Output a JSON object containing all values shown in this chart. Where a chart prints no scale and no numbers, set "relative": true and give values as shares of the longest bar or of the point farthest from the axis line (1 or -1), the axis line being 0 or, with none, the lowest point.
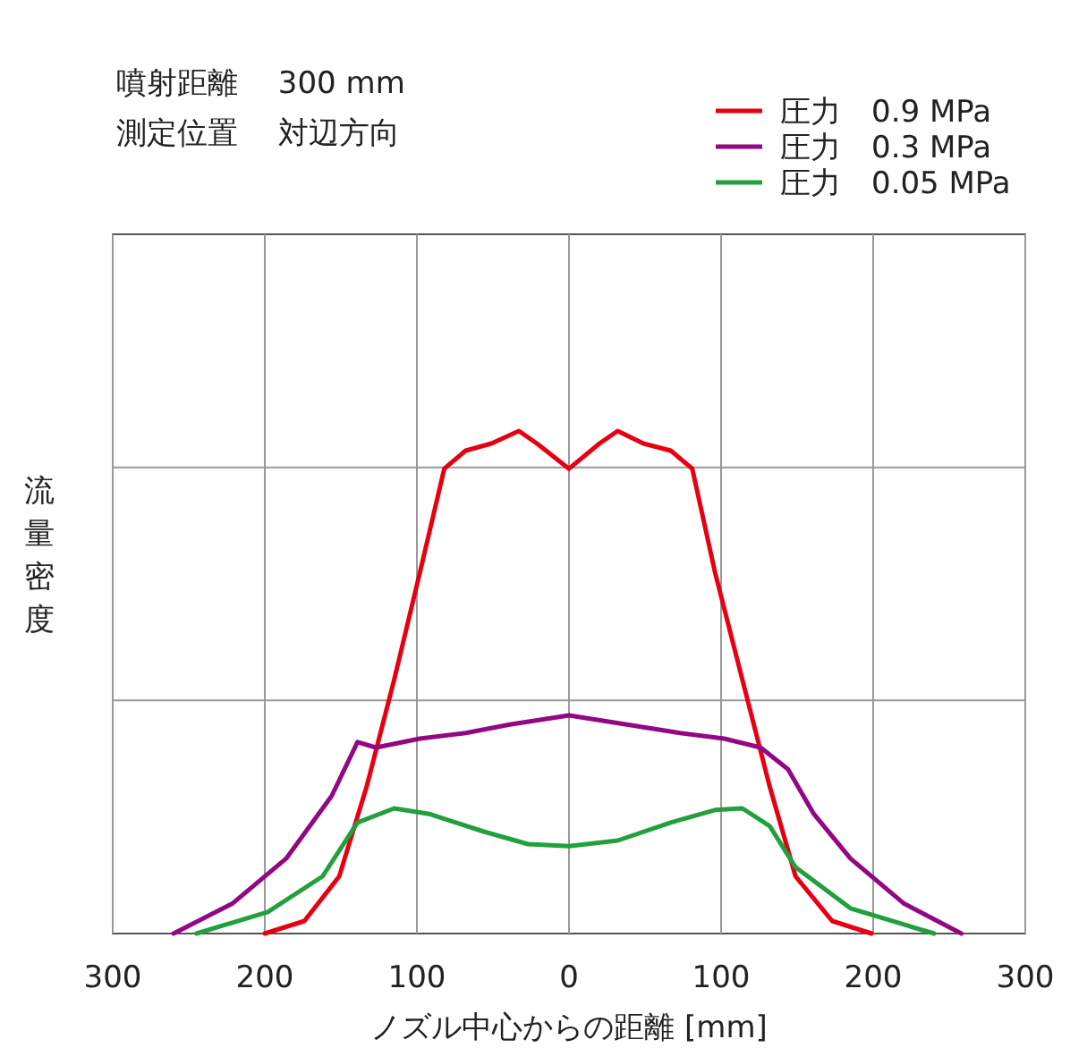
{
  "chart_data": {
    "type": "line",
    "relative": true,
    "xlabel": "ノズル中心からの距離 [mm]",
    "ylabel": "流量密度",
    "annotations": [
      "噴射距離　 300 mm",
      "測定位置　 対辺方向"
    ],
    "xlim": [
      -300,
      300
    ],
    "xticks": [
      {
        "value": -300,
        "label": "300"
      },
      {
        "value": -200,
        "label": "200"
      },
      {
        "value": -100,
        "label": "100"
      },
      0,
      100,
      200,
      300
    ],
    "grid": true,
    "legend": "top right",
    "series": [
      {
        "name": "圧力　0.9 MPa",
        "color": "#e60012",
        "x": [
          -200,
          -174,
          -151,
          -133,
          -115,
          -98,
          -82,
          -68,
          -51,
          -33,
          -21,
          0,
          20,
          32,
          49,
          67,
          81,
          96,
          114,
          132,
          149,
          173,
          199
        ],
        "values": [
          0,
          0.025,
          0.114,
          0.292,
          0.505,
          0.719,
          0.925,
          0.961,
          0.975,
          1,
          0.975,
          0.925,
          0.975,
          1,
          0.975,
          0.961,
          0.925,
          0.719,
          0.505,
          0.292,
          0.114,
          0.025,
          0
        ]
      },
      {
        "name": "圧力　0.3 MPa",
        "color": "#920783",
        "x": [
          -260,
          -221,
          -186,
          -156,
          -139,
          -127,
          -98,
          -68,
          -39,
          0,
          38,
          73,
          102,
          126,
          144,
          161,
          185,
          220,
          258
        ],
        "values": [
          0,
          0.06,
          0.149,
          0.274,
          0.381,
          0.37,
          0.388,
          0.399,
          0.416,
          0.434,
          0.416,
          0.399,
          0.388,
          0.37,
          0.327,
          0.238,
          0.149,
          0.06,
          0
        ]
      },
      {
        "name": "圧力　0.05 MPa",
        "color": "#22a03c",
        "x": [
          -245,
          -198,
          -162,
          -139,
          -115,
          -92,
          -56,
          -27,
          0,
          32,
          67,
          96,
          114,
          132,
          149,
          185,
          240
        ],
        "values": [
          0,
          0.043,
          0.114,
          0.221,
          0.249,
          0.238,
          0.203,
          0.178,
          0.174,
          0.185,
          0.221,
          0.246,
          0.249,
          0.214,
          0.132,
          0.05,
          0
        ]
      }
    ]
  }
}
